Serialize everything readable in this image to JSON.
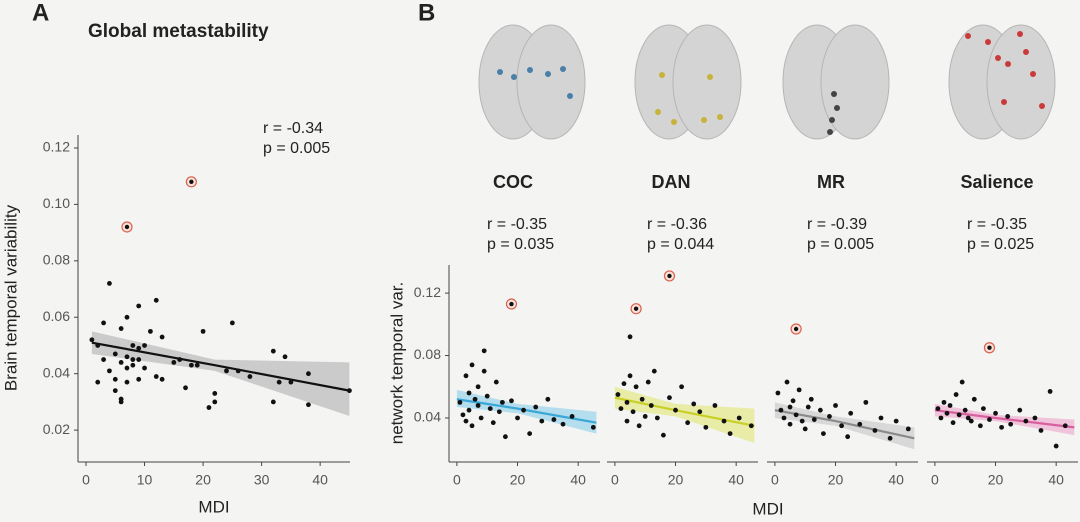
{
  "panel_a": {
    "label": "A"
  },
  "panel_b": {
    "label": "B",
    "xlabel": "MDI",
    "ylabel": "network temporal var."
  },
  "chart_data": [
    {
      "type": "scatter",
      "title": "Global metastability",
      "xlabel": "MDI",
      "ylabel": "Brain temporal variability",
      "annotations": [
        "r  = -0.34",
        "p = 0.005"
      ],
      "color": "#111111",
      "outlier_color": "#d9614c",
      "x": [
        1,
        2,
        2,
        3,
        3,
        4,
        4,
        5,
        5,
        5,
        6,
        6,
        6,
        6,
        7,
        7,
        7,
        7,
        8,
        8,
        8,
        9,
        9,
        9,
        9,
        10,
        10,
        11,
        12,
        12,
        13,
        13,
        15,
        16,
        17,
        18,
        19,
        20,
        21,
        22,
        22,
        24,
        25,
        26,
        28,
        32,
        32,
        33,
        34,
        35,
        38,
        38,
        45
      ],
      "y": [
        0.052,
        0.037,
        0.05,
        0.058,
        0.045,
        0.072,
        0.041,
        0.047,
        0.038,
        0.034,
        0.044,
        0.031,
        0.03,
        0.056,
        0.06,
        0.046,
        0.042,
        0.037,
        0.05,
        0.045,
        0.043,
        0.064,
        0.049,
        0.045,
        0.038,
        0.05,
        0.042,
        0.055,
        0.066,
        0.039,
        0.053,
        0.038,
        0.044,
        0.045,
        0.035,
        0.043,
        0.043,
        0.055,
        0.028,
        0.03,
        0.033,
        0.041,
        0.058,
        0.041,
        0.039,
        0.048,
        0.03,
        0.037,
        0.046,
        0.037,
        0.04,
        0.029,
        0.034
      ],
      "outliers": {
        "x": [
          7,
          18
        ],
        "y": [
          0.092,
          0.108
        ]
      },
      "fit": {
        "color": "#111111",
        "band_color": "#bdbdbd",
        "x": [
          1,
          22,
          45
        ],
        "y": [
          0.051,
          0.043,
          0.034
        ],
        "lower": [
          0.047,
          0.041,
          0.025
        ],
        "upper": [
          0.055,
          0.045,
          0.044
        ]
      },
      "xlim": [
        -1.37,
        45.1
      ],
      "ylim": [
        0.0087,
        0.1246
      ],
      "xticks": [
        0,
        10,
        20,
        30,
        40
      ],
      "yticks": [
        0.02,
        0.04,
        0.06,
        0.08,
        {
          "value": 0.1,
          "label": "0.10"
        },
        0.12
      ]
    },
    {
      "type": "scatter",
      "title": "COC",
      "annotations": [
        "r  = -0.35",
        "p = 0.035"
      ],
      "color": "#111111",
      "outlier_color": "#d9614c",
      "x": [
        1,
        2,
        3,
        3,
        4,
        4,
        5,
        5,
        6,
        7,
        7,
        8,
        9,
        9,
        10,
        11,
        12,
        13,
        14,
        15,
        16,
        18,
        20,
        22,
        24,
        26,
        28,
        30,
        32,
        35,
        38,
        45
      ],
      "y": [
        0.05,
        0.042,
        0.067,
        0.038,
        0.056,
        0.045,
        0.074,
        0.035,
        0.052,
        0.06,
        0.048,
        0.04,
        0.083,
        0.07,
        0.054,
        0.046,
        0.037,
        0.063,
        0.044,
        0.05,
        0.028,
        0.051,
        0.04,
        0.045,
        0.03,
        0.047,
        0.038,
        0.052,
        0.039,
        0.036,
        0.041,
        0.034
      ],
      "outliers": {
        "x": [
          18
        ],
        "y": [
          0.113
        ]
      },
      "fit": {
        "color": "#3aa7d6",
        "band_color": "#9fd6ec",
        "x": [
          0,
          20,
          46
        ],
        "y": [
          0.052,
          0.046,
          0.037
        ],
        "lower": [
          0.047,
          0.043,
          0.03
        ],
        "upper": [
          0.058,
          0.049,
          0.044
        ]
      },
      "xlim": [
        -2.6,
        47.2
      ],
      "ylim": [
        0.0118,
        0.138
      ],
      "xticks": [
        0,
        20,
        40
      ],
      "yticks": [
        0.04,
        0.08,
        0.12
      ]
    },
    {
      "type": "scatter",
      "title": "DAN",
      "annotations": [
        "r  = -0.36",
        "p = 0.044"
      ],
      "color": "#111111",
      "outlier_color": "#d9614c",
      "x": [
        1,
        2,
        3,
        4,
        4,
        5,
        5,
        6,
        7,
        8,
        9,
        10,
        11,
        12,
        13,
        14,
        16,
        18,
        20,
        22,
        24,
        26,
        28,
        30,
        33,
        36,
        38,
        41,
        45
      ],
      "y": [
        0.055,
        0.046,
        0.062,
        0.038,
        0.05,
        0.092,
        0.067,
        0.044,
        0.06,
        0.035,
        0.052,
        0.041,
        0.063,
        0.048,
        0.07,
        0.04,
        0.029,
        0.053,
        0.045,
        0.06,
        0.037,
        0.049,
        0.044,
        0.034,
        0.048,
        0.038,
        0.03,
        0.04,
        0.035
      ],
      "outliers": {
        "x": [
          7,
          18
        ],
        "y": [
          0.11,
          0.131
        ]
      },
      "fit": {
        "color": "#c9cf26",
        "band_color": "#e4e98c",
        "x": [
          0,
          20,
          46
        ],
        "y": [
          0.053,
          0.045,
          0.035
        ],
        "lower": [
          0.046,
          0.041,
          0.024
        ],
        "upper": [
          0.06,
          0.049,
          0.046
        ]
      },
      "xlim": [
        -2.6,
        47.2
      ],
      "ylim": [
        0.0118,
        0.138
      ],
      "xticks": [
        0,
        20,
        40
      ]
    },
    {
      "type": "scatter",
      "title": "MR",
      "annotations": [
        "r  = -0.39",
        "p = 0.005"
      ],
      "color": "#111111",
      "outlier_color": "#d9614c",
      "x": [
        1,
        2,
        3,
        4,
        5,
        5,
        6,
        7,
        8,
        9,
        10,
        11,
        12,
        13,
        15,
        16,
        18,
        20,
        22,
        24,
        25,
        28,
        30,
        33,
        35,
        38,
        40,
        44
      ],
      "y": [
        0.056,
        0.045,
        0.04,
        0.063,
        0.047,
        0.036,
        0.051,
        0.042,
        0.058,
        0.038,
        0.033,
        0.047,
        0.052,
        0.039,
        0.045,
        0.03,
        0.041,
        0.048,
        0.035,
        0.028,
        0.043,
        0.036,
        0.05,
        0.032,
        0.04,
        0.027,
        0.038,
        0.033
      ],
      "outliers": {
        "x": [
          7
        ],
        "y": [
          0.097
        ]
      },
      "fit": {
        "color": "#8a8a8a",
        "band_color": "#cfcfcf",
        "x": [
          0,
          20,
          46
        ],
        "y": [
          0.045,
          0.038,
          0.027
        ],
        "lower": [
          0.04,
          0.035,
          0.02
        ],
        "upper": [
          0.05,
          0.041,
          0.034
        ]
      },
      "xlim": [
        -2.6,
        47.2
      ],
      "ylim": [
        0.0118,
        0.138
      ],
      "xticks": [
        0,
        20,
        40
      ]
    },
    {
      "type": "scatter",
      "title": "Salience",
      "annotations": [
        "r  = -0.35",
        "p = 0.025"
      ],
      "color": "#111111",
      "outlier_color": "#d9614c",
      "x": [
        1,
        2,
        3,
        4,
        5,
        6,
        7,
        8,
        9,
        10,
        11,
        12,
        13,
        15,
        16,
        18,
        20,
        22,
        24,
        25,
        28,
        30,
        33,
        35,
        38,
        40,
        43
      ],
      "y": [
        0.046,
        0.04,
        0.05,
        0.043,
        0.048,
        0.037,
        0.055,
        0.042,
        0.063,
        0.045,
        0.04,
        0.038,
        0.052,
        0.035,
        0.046,
        0.039,
        0.043,
        0.034,
        0.041,
        0.036,
        0.045,
        0.038,
        0.04,
        0.032,
        0.057,
        0.022,
        0.035
      ],
      "outliers": {
        "x": [
          18
        ],
        "y": [
          0.085
        ]
      },
      "fit": {
        "color": "#d8609e",
        "band_color": "#efb4d3",
        "x": [
          0,
          20,
          46
        ],
        "y": [
          0.045,
          0.04,
          0.034
        ],
        "lower": [
          0.041,
          0.038,
          0.029
        ],
        "upper": [
          0.049,
          0.042,
          0.039
        ]
      },
      "xlim": [
        -2.6,
        47.2
      ],
      "ylim": [
        0.0118,
        0.138
      ],
      "xticks": [
        0,
        20,
        40
      ]
    }
  ]
}
